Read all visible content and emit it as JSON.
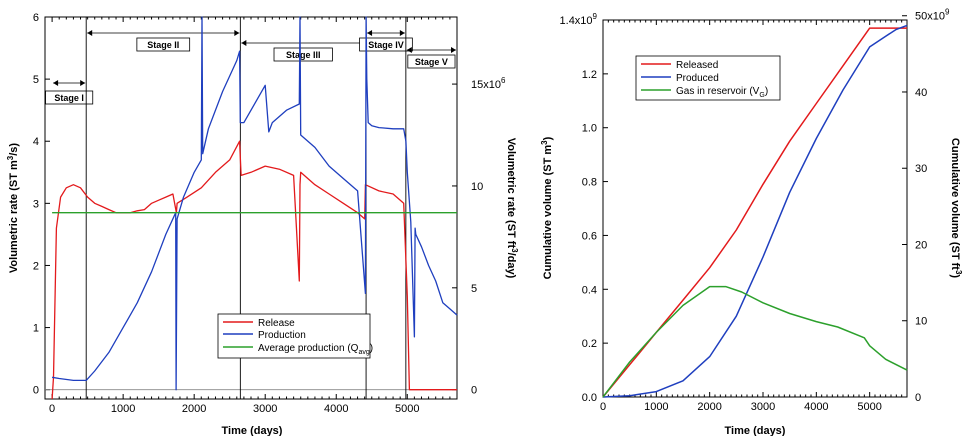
{
  "chart_data": [
    {
      "type": "line",
      "xlabel": "Time (days)",
      "ylabel": "Volumetric rate (ST m³/s)",
      "ylabel_right": "Volumetric rate (ST ft³/day)",
      "xlim": [
        -100,
        5700
      ],
      "ylim": [
        -0.15,
        6.0
      ],
      "x_ticks": [
        "0",
        "1000",
        "2000",
        "3000",
        "4000",
        "5000"
      ],
      "y_ticks": [
        "0",
        "1",
        "2",
        "3",
        "4",
        "5",
        "6"
      ],
      "y2_ticks": [
        "0",
        "5",
        "10",
        "15x10⁶"
      ],
      "y2_tick_values": [
        0,
        1.64,
        3.28,
        4.92
      ],
      "stages": [
        {
          "name": "Stage I",
          "start": 0,
          "end": 480
        },
        {
          "name": "Stage II",
          "start": 480,
          "end": 2650
        },
        {
          "name": "Stage III",
          "start": 2650,
          "end": 4420
        },
        {
          "name": "Stage IV",
          "start": 4420,
          "end": 4980
        },
        {
          "name": "Stage V",
          "start": 4980,
          "end": 5700
        }
      ],
      "series": [
        {
          "name": "Release",
          "color": "#e31a1c",
          "x": [
            0,
            20,
            60,
            120,
            200,
            300,
            400,
            500,
            600,
            700,
            800,
            900,
            1000,
            1100,
            1200,
            1300,
            1400,
            1500,
            1600,
            1700,
            1750,
            1760,
            1900,
            2100,
            2300,
            2500,
            2640,
            2660,
            2800,
            3000,
            3200,
            3400,
            3480,
            3490,
            3500,
            3700,
            3900,
            4100,
            4300,
            4400,
            4410,
            4600,
            4800,
            4950,
            5000,
            5030,
            5100,
            5700
          ],
          "y": [
            -0.15,
            0.2,
            2.6,
            3.1,
            3.25,
            3.3,
            3.25,
            3.1,
            3.0,
            2.95,
            2.9,
            2.85,
            2.85,
            2.85,
            2.88,
            2.9,
            3.0,
            3.05,
            3.1,
            3.15,
            2.85,
            3.0,
            3.1,
            3.25,
            3.5,
            3.7,
            4.0,
            3.45,
            3.5,
            3.6,
            3.55,
            3.45,
            1.75,
            3.3,
            3.5,
            3.3,
            3.15,
            3.0,
            2.85,
            2.75,
            3.3,
            3.2,
            3.15,
            3.0,
            1.5,
            0.0,
            0.0,
            0.0
          ]
        },
        {
          "name": "Production",
          "color": "#1f3fbf",
          "x": [
            0,
            100,
            300,
            480,
            600,
            800,
            1000,
            1200,
            1400,
            1600,
            1740,
            1745,
            1760,
            1850,
            2000,
            2100,
            2110,
            2120,
            2200,
            2400,
            2600,
            2640,
            2650,
            2700,
            3000,
            3050,
            3100,
            3300,
            3480,
            3490,
            3500,
            3700,
            3900,
            4100,
            4300,
            4410,
            4420,
            4430,
            4450,
            4500,
            4600,
            4800,
            4950,
            4980,
            5000,
            5050,
            5100,
            5110,
            5120,
            5200,
            5300,
            5400,
            5500,
            5600,
            5700
          ],
          "y": [
            0.2,
            0.18,
            0.15,
            0.15,
            0.3,
            0.6,
            1.0,
            1.4,
            1.9,
            2.5,
            2.85,
            0.0,
            2.75,
            3.1,
            3.5,
            3.7,
            6.0,
            3.8,
            4.2,
            4.8,
            5.3,
            5.45,
            4.3,
            4.3,
            4.9,
            4.15,
            4.3,
            4.5,
            4.6,
            6.0,
            4.1,
            3.9,
            3.6,
            3.4,
            3.2,
            1.55,
            6.0,
            5.0,
            4.3,
            4.25,
            4.22,
            4.2,
            4.2,
            4.0,
            3.5,
            2.7,
            0.85,
            2.6,
            2.5,
            2.3,
            2.0,
            1.75,
            1.4,
            1.3,
            1.2
          ]
        },
        {
          "name": "Average production (Q_avg)",
          "color": "#2ca02c",
          "x": [
            0,
            5700
          ],
          "y": [
            2.85,
            2.85
          ]
        }
      ],
      "legend": [
        "Release",
        "Production",
        "Average production (Q",
        "avg",
        ")"
      ],
      "legend_position": "bottom-center",
      "grid": false
    },
    {
      "type": "line",
      "xlabel": "Time (days)",
      "ylabel": "Cumulative volume (ST m³)",
      "ylabel_right": "Cumulative volume (ST ft³)",
      "xlim": [
        0,
        5700
      ],
      "ylim": [
        0,
        1400000000.0
      ],
      "x_ticks": [
        "0",
        "1000",
        "2000",
        "3000",
        "4000",
        "5000"
      ],
      "y_ticks": [
        "0.0",
        "0.2",
        "0.4",
        "0.6",
        "0.8",
        "1.0",
        "1.2",
        "1.4x10⁹"
      ],
      "y2_ticks": [
        "0",
        "10",
        "20",
        "30",
        "40",
        "50x10⁹"
      ],
      "y2_tick_values": [
        0,
        0.2832,
        0.5663,
        0.8495,
        1.1327,
        1.4158
      ],
      "series": [
        {
          "name": "Released",
          "color": "#e31a1c",
          "x": [
            0,
            500,
            1000,
            1500,
            2000,
            2500,
            3000,
            3500,
            4000,
            4500,
            5000,
            5700
          ],
          "y": [
            0,
            120000000.0,
            240000000.0,
            360000000.0,
            480000000.0,
            620000000.0,
            790000000.0,
            950000000.0,
            1090000000.0,
            1230000000.0,
            1370000000.0,
            1370000000.0
          ]
        },
        {
          "name": "Produced",
          "color": "#1f3fbf",
          "x": [
            0,
            500,
            1000,
            1500,
            2000,
            2500,
            3000,
            3500,
            4000,
            4500,
            5000,
            5300,
            5500,
            5700
          ],
          "y": [
            0,
            5000000.0,
            20000000.0,
            60000000.0,
            150000000.0,
            300000000.0,
            520000000.0,
            760000000.0,
            960000000.0,
            1140000000.0,
            1300000000.0,
            1340000000.0,
            1365000000.0,
            1380000000.0
          ]
        },
        {
          "name": "Gas in reservoir (V_G)",
          "color": "#2ca02c",
          "x": [
            0,
            500,
            1000,
            1500,
            2000,
            2300,
            2600,
            3000,
            3500,
            4000,
            4400,
            4900,
            5000,
            5300,
            5700
          ],
          "y": [
            0,
            130000000.0,
            240000000.0,
            340000000.0,
            410000000.0,
            410000000.0,
            390000000.0,
            350000000.0,
            310000000.0,
            280000000.0,
            260000000.0,
            220000000.0,
            190000000.0,
            140000000.0,
            100000000.0
          ]
        }
      ],
      "legend": [
        "Released",
        "Produced",
        "Gas in reservoir (V",
        "G",
        ")"
      ],
      "legend_position": "top-left",
      "grid": false
    }
  ]
}
